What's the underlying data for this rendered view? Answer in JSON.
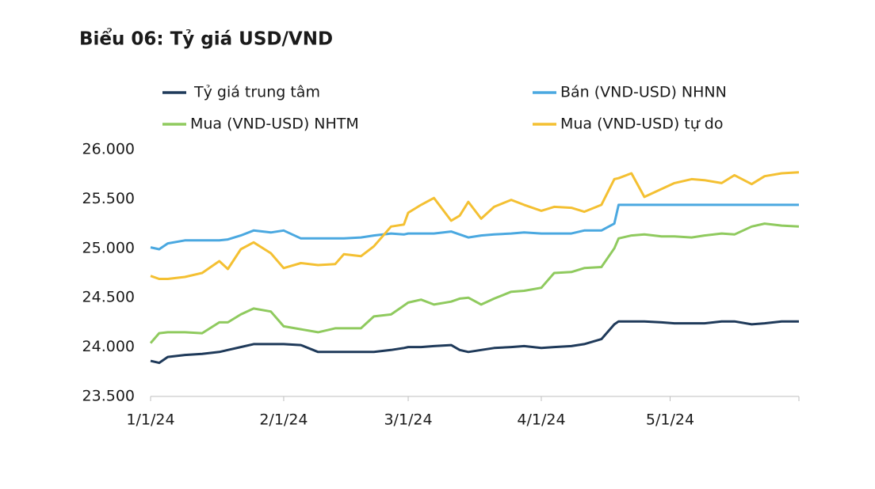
{
  "chart_data": {
    "type": "line",
    "title": "Biểu 06: Tỷ giá USD/VND",
    "x": [
      "1/1/24",
      "1/3/24",
      "1/5/24",
      "1/9/24",
      "1/13/24",
      "1/17/24",
      "1/19/24",
      "1/22/24",
      "1/25/24",
      "1/29/24",
      "2/1/24",
      "2/5/24",
      "2/9/24",
      "2/13/24",
      "2/15/24",
      "2/19/24",
      "2/22/24",
      "2/26/24",
      "2/29/24",
      "3/1/24",
      "3/4/24",
      "3/7/24",
      "3/11/24",
      "3/13/24",
      "3/15/24",
      "3/18/24",
      "3/21/24",
      "3/25/24",
      "3/28/24",
      "4/1/24",
      "4/4/24",
      "4/8/24",
      "4/11/24",
      "4/15/24",
      "4/18/24",
      "4/19/24",
      "4/22/24",
      "4/25/24",
      "4/29/24",
      "5/2/24",
      "5/6/24",
      "5/9/24",
      "5/13/24",
      "5/16/24",
      "5/20/24",
      "5/23/24",
      "5/27/24",
      "5/31/24"
    ],
    "series": [
      {
        "name": "Tỷ giá trung tâm",
        "color": "#1f3a5a",
        "values": [
          23860,
          23840,
          23900,
          23920,
          23930,
          23950,
          23970,
          24000,
          24030,
          24030,
          24030,
          24020,
          23950,
          23950,
          23950,
          23950,
          23950,
          23970,
          23990,
          24000,
          24000,
          24010,
          24020,
          23970,
          23950,
          23970,
          23990,
          24000,
          24010,
          23990,
          24000,
          24010,
          24030,
          24080,
          24230,
          24260,
          24260,
          24260,
          24250,
          24240,
          24240,
          24240,
          24260,
          24260,
          24230,
          24240,
          24260,
          24260
        ]
      },
      {
        "name": "Bán (VND-USD) NHNN",
        "color": "#4aa8e0",
        "values": [
          25010,
          24990,
          25050,
          25080,
          25080,
          25080,
          25090,
          25130,
          25180,
          25160,
          25180,
          25100,
          25100,
          25100,
          25100,
          25110,
          25130,
          25150,
          25140,
          25150,
          25150,
          25150,
          25170,
          25140,
          25110,
          25130,
          25140,
          25150,
          25160,
          25150,
          25150,
          25150,
          25180,
          25180,
          25250,
          25440,
          25440,
          25440,
          25440,
          25440,
          25440,
          25440,
          25440,
          25440,
          25440,
          25440,
          25440,
          25440
        ]
      },
      {
        "name": "Mua (VND-USD) NHTM",
        "color": "#8fca5e",
        "values": [
          24040,
          24140,
          24150,
          24150,
          24140,
          24250,
          24250,
          24330,
          24390,
          24360,
          24210,
          24180,
          24150,
          24190,
          24190,
          24190,
          24310,
          24330,
          24420,
          24450,
          24480,
          24430,
          24460,
          24490,
          24500,
          24430,
          24490,
          24560,
          24570,
          24600,
          24750,
          24760,
          24800,
          24810,
          25000,
          25100,
          25130,
          25140,
          25120,
          25120,
          25110,
          25130,
          25150,
          25140,
          25220,
          25250,
          25230,
          25220
        ]
      },
      {
        "name": "Mua (VND-USD) tự do",
        "color": "#f4c032",
        "values": [
          24720,
          24690,
          24690,
          24710,
          24750,
          24870,
          24790,
          24990,
          25060,
          24950,
          24800,
          24850,
          24830,
          24840,
          24940,
          24920,
          25020,
          25220,
          25240,
          25360,
          25440,
          25510,
          25280,
          25330,
          25470,
          25300,
          25420,
          25490,
          25440,
          25380,
          25420,
          25410,
          25370,
          25440,
          25700,
          25710,
          25760,
          25520,
          25600,
          25660,
          25700,
          25690,
          25660,
          25740,
          25650,
          25730,
          25760,
          25770
        ]
      }
    ],
    "xlim": [
      "1/1/24",
      "5/31/24"
    ],
    "xticks": [
      "1/1/24",
      "2/1/24",
      "3/1/24",
      "4/1/24",
      "5/1/24"
    ],
    "ylim": [
      23500,
      26000
    ],
    "yticks": [
      {
        "value": 23500,
        "label": "23.500"
      },
      {
        "value": 24000,
        "label": "24.000"
      },
      {
        "value": 24500,
        "label": "24.500"
      },
      {
        "value": 25000,
        "label": "25.000"
      },
      {
        "value": 25500,
        "label": "25.500"
      },
      {
        "value": 26000,
        "label": "26.000"
      }
    ],
    "grid": false
  }
}
